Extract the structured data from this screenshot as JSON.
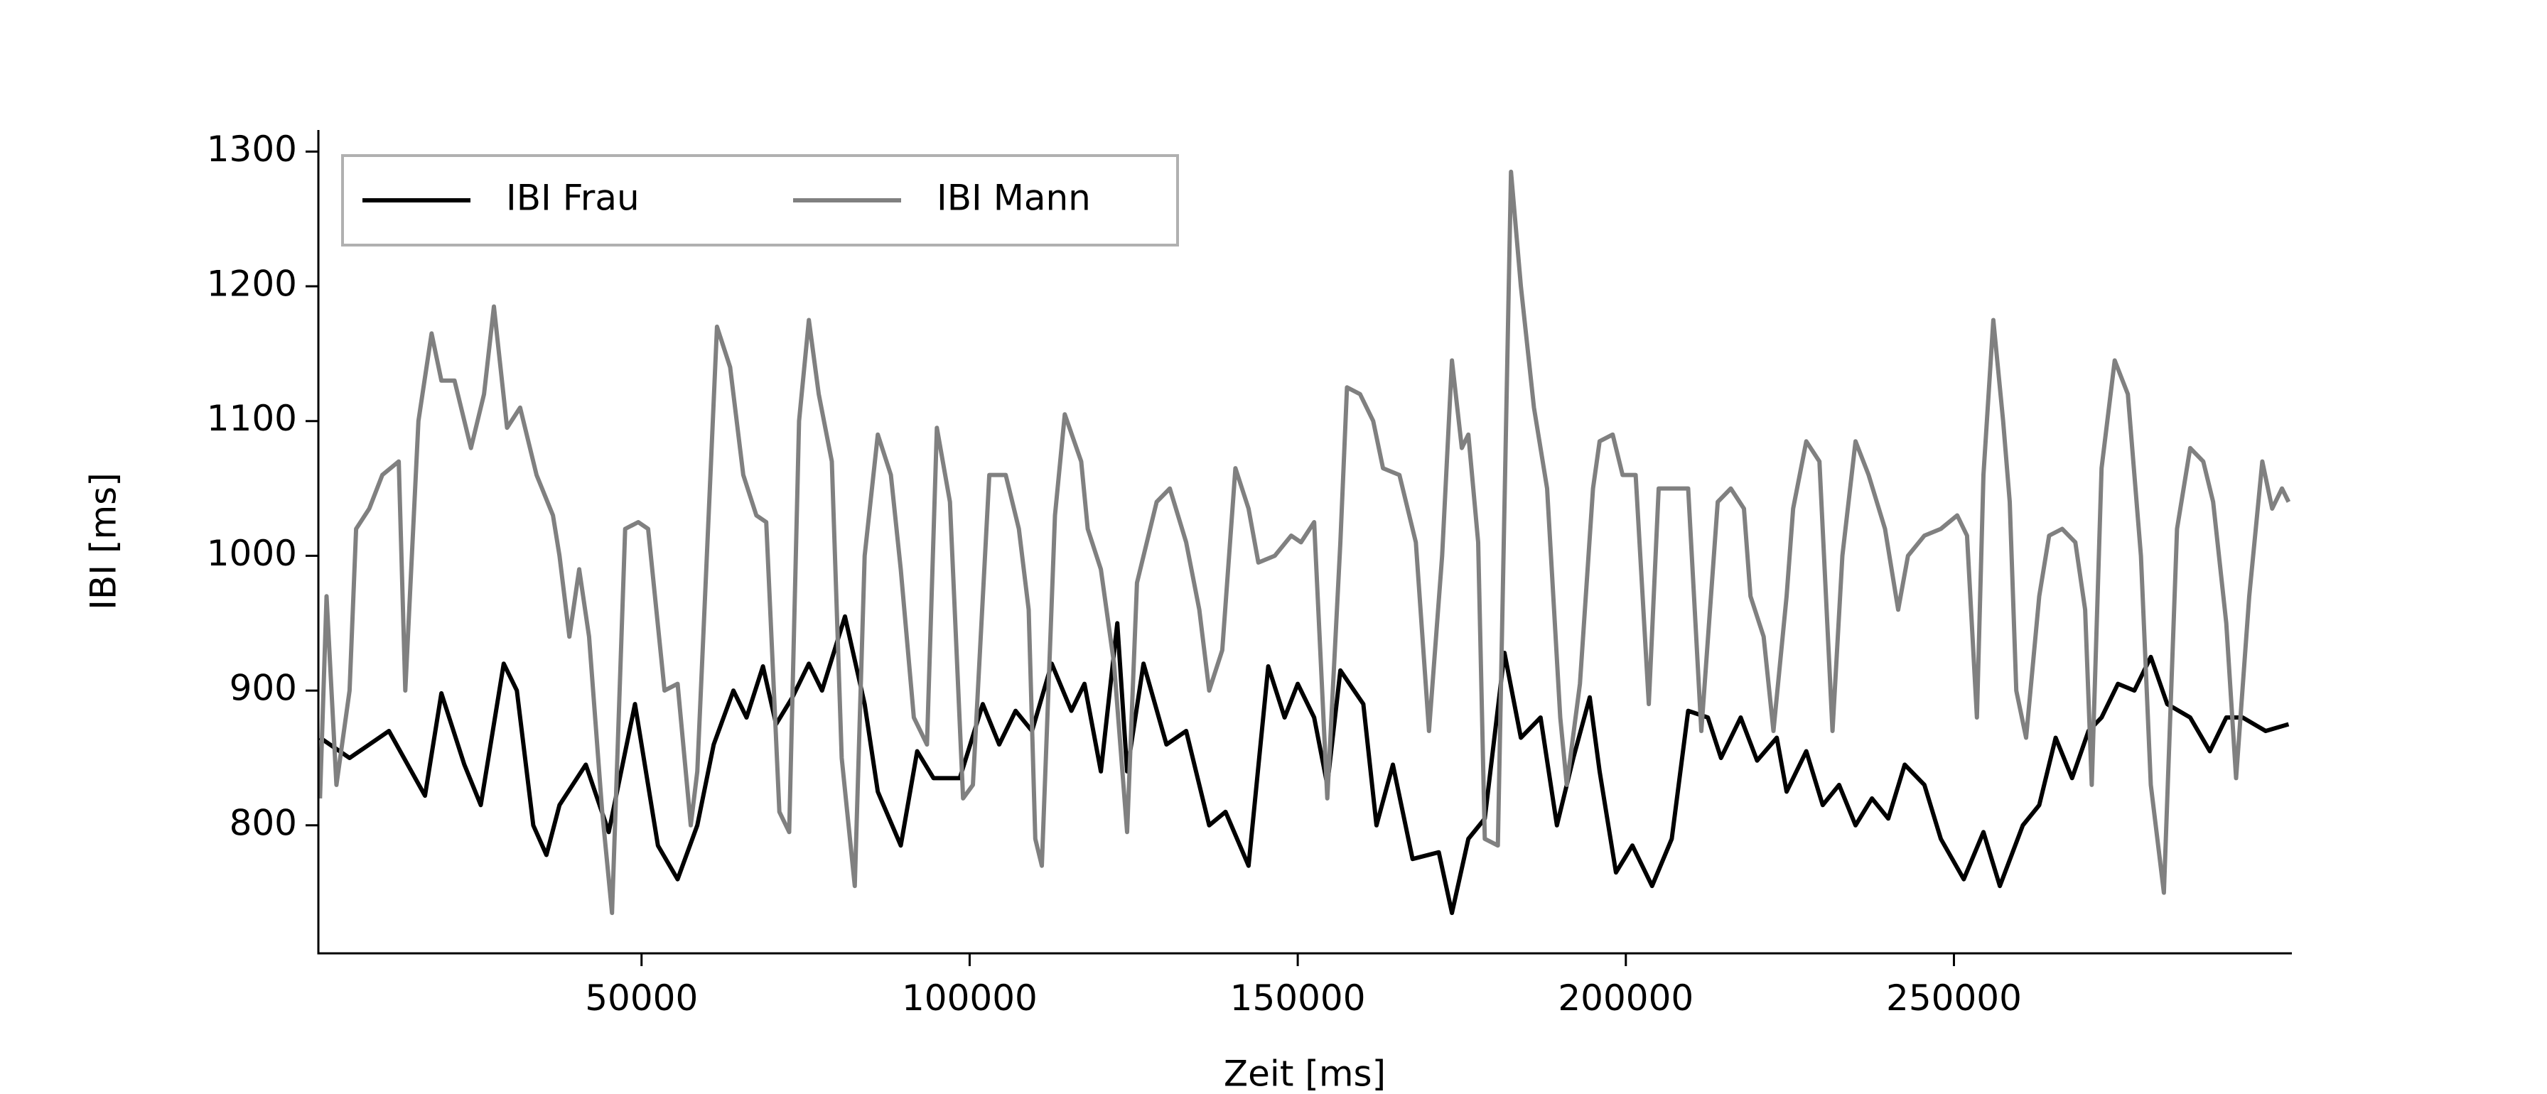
{
  "chart_data": {
    "type": "line",
    "xlabel": "Zeit [ms]",
    "ylabel": "IBI [ms]",
    "xlim": [
      750,
      301500
    ],
    "ylim": [
      705,
      1316
    ],
    "xticks": [
      50000,
      100000,
      150000,
      200000,
      250000
    ],
    "yticks": [
      800,
      900,
      1000,
      1100,
      1200,
      1300
    ],
    "grid": false,
    "legend": "upper left",
    "series": [
      {
        "name": "IBI Frau",
        "color": "#000000",
        "x": [
          1000,
          5500,
          11500,
          17000,
          19500,
          23000,
          25500,
          29000,
          31000,
          33500,
          35500,
          37500,
          41500,
          45000,
          49000,
          52500,
          55500,
          58500,
          61000,
          64000,
          66000,
          68500,
          70500,
          73000,
          75500,
          77500,
          81000,
          84000,
          86000,
          89500,
          92000,
          94500,
          98500,
          102000,
          104500,
          107000,
          109500,
          112500,
          115500,
          117500,
          120000,
          122500,
          124000,
          126500,
          130000,
          133000,
          136500,
          139000,
          142500,
          145500,
          148000,
          150000,
          152500,
          154500,
          156500,
          160000,
          162000,
          164500,
          167500,
          171500,
          173500,
          176000,
          178500,
          181500,
          184000,
          187000,
          189500,
          192000,
          194500,
          196000,
          198500,
          201000,
          204000,
          207000,
          209500,
          212500,
          214500,
          217500,
          220000,
          223000,
          224500,
          227500,
          230000,
          232500,
          235000,
          237500,
          240000,
          242500,
          245500,
          248000,
          251500,
          254500,
          257000,
          260500,
          263000,
          265500,
          268000,
          270500,
          272500,
          275000,
          277500,
          280000,
          282500,
          286000,
          289000,
          291500,
          294000,
          297500,
          301000
        ],
        "values": [
          865,
          850,
          870,
          822,
          898,
          845,
          815,
          920,
          900,
          800,
          778,
          815,
          845,
          795,
          890,
          785,
          760,
          800,
          860,
          900,
          880,
          918,
          875,
          895,
          920,
          900,
          955,
          890,
          825,
          785,
          855,
          835,
          835,
          890,
          860,
          885,
          870,
          920,
          885,
          905,
          840,
          950,
          840,
          920,
          860,
          870,
          800,
          810,
          770,
          918,
          880,
          905,
          880,
          830,
          915,
          890,
          800,
          845,
          775,
          780,
          735,
          790,
          805,
          928,
          865,
          880,
          800,
          850,
          895,
          840,
          765,
          785,
          755,
          790,
          885,
          880,
          850,
          880,
          848,
          865,
          825,
          855,
          815,
          830,
          800,
          820,
          805,
          845,
          830,
          790,
          760,
          795,
          755,
          800,
          815,
          865,
          835,
          870,
          880,
          905,
          900,
          925,
          890,
          880,
          855,
          880,
          880,
          870,
          875
        ]
      },
      {
        "name": "IBI Mann",
        "color": "#808080",
        "x": [
          1000,
          2000,
          3500,
          5500,
          6500,
          8500,
          10500,
          13000,
          14000,
          16000,
          18000,
          19500,
          21500,
          24000,
          26000,
          27500,
          29500,
          31500,
          34000,
          36500,
          37500,
          39000,
          40500,
          42000,
          44000,
          45500,
          47500,
          49500,
          51000,
          53500,
          55500,
          57500,
          58500,
          60500,
          61500,
          63500,
          65500,
          67500,
          69000,
          71000,
          72500,
          74000,
          75500,
          77000,
          79000,
          80500,
          82500,
          84000,
          86000,
          88000,
          89500,
          91500,
          93500,
          95000,
          97000,
          99000,
          100500,
          103000,
          105500,
          107500,
          109000,
          110000,
          111000,
          113000,
          114500,
          117000,
          118000,
          120000,
          122000,
          124000,
          125500,
          128500,
          130500,
          133000,
          135000,
          136500,
          138500,
          140500,
          142500,
          144000,
          146500,
          149000,
          150500,
          152500,
          154500,
          156500,
          157500,
          159500,
          161500,
          163000,
          165500,
          168000,
          170000,
          172000,
          173500,
          175000,
          176000,
          177500,
          178500,
          180500,
          182500,
          184000,
          186000,
          188000,
          190000,
          191000,
          193000,
          195000,
          196000,
          198000,
          199500,
          201500,
          203500,
          205000,
          207500,
          209500,
          211500,
          214000,
          216000,
          218000,
          219000,
          221000,
          222500,
          224500,
          225500,
          227500,
          229500,
          231500,
          233000,
          235000,
          237000,
          239500,
          241500,
          243000,
          245500,
          248000,
          250500,
          252000,
          253500,
          254500,
          256000,
          257500,
          258500,
          259500,
          261000,
          263000,
          264500,
          266500,
          268500,
          270000,
          271000,
          272500,
          274500,
          276500,
          278500,
          280000,
          282000,
          284000,
          286000,
          288000,
          289500,
          291500,
          293000,
          295000,
          297000,
          298500,
          300000,
          301000
        ],
        "values": [
          820,
          970,
          830,
          900,
          1020,
          1035,
          1060,
          1070,
          900,
          1100,
          1165,
          1130,
          1130,
          1080,
          1120,
          1185,
          1095,
          1110,
          1060,
          1030,
          1000,
          940,
          990,
          940,
          810,
          735,
          1020,
          1025,
          1020,
          900,
          905,
          800,
          840,
          1060,
          1170,
          1140,
          1060,
          1030,
          1025,
          810,
          795,
          1100,
          1175,
          1120,
          1070,
          850,
          755,
          1000,
          1090,
          1060,
          990,
          880,
          860,
          1095,
          1040,
          820,
          830,
          1060,
          1060,
          1020,
          960,
          790,
          770,
          1030,
          1105,
          1070,
          1020,
          990,
          920,
          795,
          980,
          1040,
          1050,
          1010,
          960,
          900,
          930,
          1065,
          1035,
          995,
          1000,
          1015,
          1010,
          1025,
          820,
          1010,
          1125,
          1120,
          1100,
          1065,
          1060,
          1010,
          870,
          1000,
          1145,
          1080,
          1090,
          1010,
          790,
          785,
          1285,
          1200,
          1110,
          1050,
          880,
          830,
          905,
          1050,
          1085,
          1090,
          1060,
          1060,
          890,
          1050,
          1050,
          1050,
          870,
          1040,
          1050,
          1035,
          970,
          940,
          870,
          970,
          1035,
          1085,
          1070,
          870,
          1000,
          1085,
          1060,
          1020,
          960,
          1000,
          1015,
          1020,
          1030,
          1015,
          880,
          1060,
          1175,
          1100,
          1040,
          900,
          865,
          970,
          1015,
          1020,
          1010,
          960,
          830,
          1065,
          1145,
          1120,
          1000,
          830,
          750,
          1020,
          1080,
          1070,
          1040,
          950,
          835,
          970,
          1070,
          1035,
          1050,
          1040
        ]
      }
    ]
  }
}
